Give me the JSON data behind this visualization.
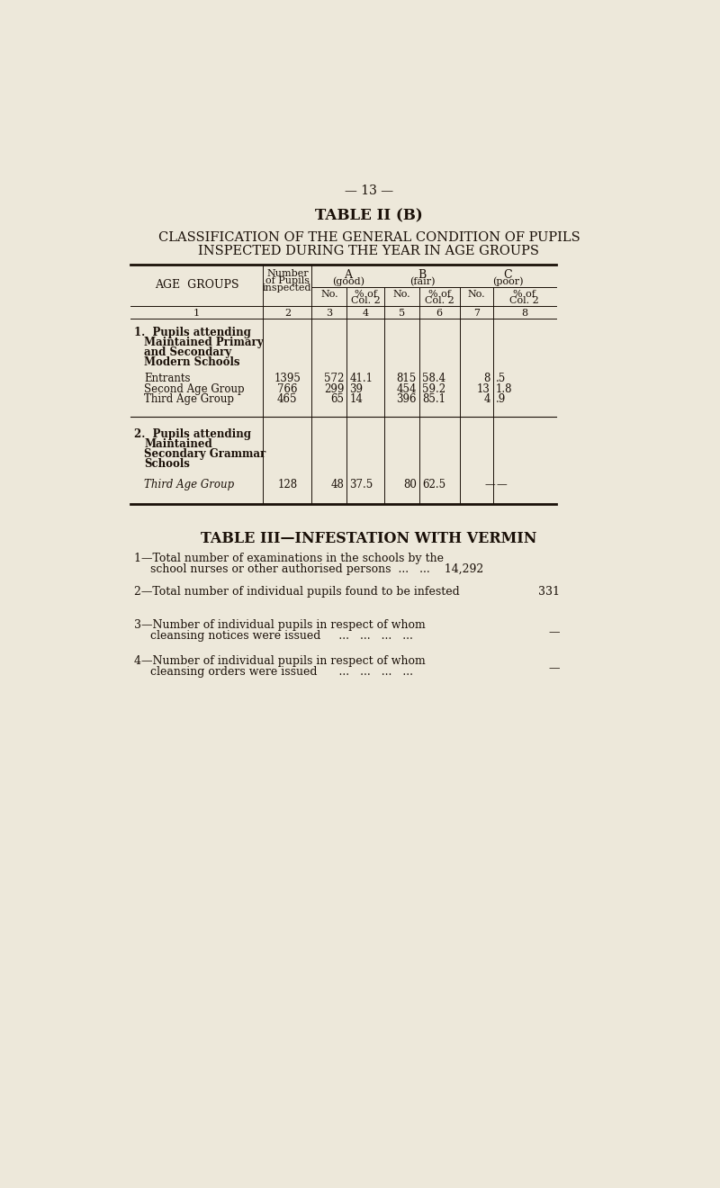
{
  "bg_color": "#ede8da",
  "text_color": "#1a1008",
  "page_number": "— 13 —",
  "table2_title": "TABLE II (B)",
  "table2_subtitle1": "CLASSIFICATION OF THE GENERAL CONDITION OF PUPILS",
  "table2_subtitle2": "INSPECTED DURING THE YEAR IN AGE GROUPS",
  "section1_header": [
    "1.  Pupils attending",
    "Maintained Primary",
    "and Secondary",
    "Modern Schools"
  ],
  "section1_rows": [
    {
      "label": "Entrants",
      "n": "1395",
      "a_no": "572",
      "a_pct": "41.1",
      "b_no": "815",
      "b_pct": "58.4",
      "c_no": "8",
      "c_pct": ".5"
    },
    {
      "label": "Second Age Group",
      "n": "766",
      "a_no": "299",
      "a_pct": "39",
      "b_no": "454",
      "b_pct": "59.2",
      "c_no": "13",
      "c_pct": "1.8"
    },
    {
      "label": "Third Age Group",
      "n": "465",
      "a_no": "65",
      "a_pct": "14",
      "b_no": "396",
      "b_pct": "85.1",
      "c_no": "4",
      "c_pct": ".9"
    }
  ],
  "section2_header": [
    "2.  Pupils attending",
    "Maintained",
    "Secondary Grammar",
    "Schools"
  ],
  "section2_rows": [
    {
      "label": "Third Age Group",
      "n": "128",
      "a_no": "48",
      "a_pct": "37.5",
      "b_no": "80",
      "b_pct": "62.5",
      "c_no": "—",
      "c_pct": "—"
    }
  ],
  "table3_title": "TABLE III—INFESTATION WITH VERMIN",
  "table3_items": [
    {
      "num": "1",
      "text1": "Total number of examinations in the schools by the",
      "text2": "school nurses or other authorised persons  ...   ...    14,292",
      "value": ""
    },
    {
      "num": "2",
      "text1": "Total number of individual pupils found to be infested",
      "text2": null,
      "value": "331"
    },
    {
      "num": "3",
      "text1": "Number of individual pupils in respect of whom",
      "text2": "cleansing notices were issued     ...   ...   ...   ...",
      "value": "—"
    },
    {
      "num": "4",
      "text1": "Number of individual pupils in respect of whom",
      "text2": "cleansing orders were issued      ...   ...   ...   ...",
      "value": "—"
    }
  ]
}
